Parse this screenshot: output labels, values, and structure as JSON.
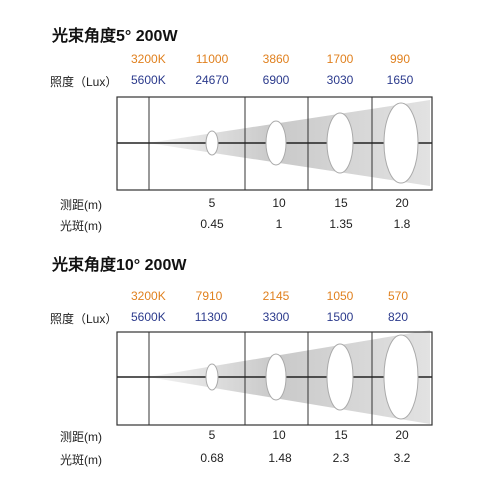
{
  "panels": [
    {
      "title": "光束角度5°  200W",
      "lux_label": "照度（Lux）",
      "distance_label": "测距(m)",
      "spot_label": "光斑(m)",
      "row_3200": {
        "name": "3200K",
        "values": [
          "11000",
          "3860",
          "1700",
          "990"
        ]
      },
      "row_5600": {
        "name": "5600K",
        "values": [
          "24670",
          "6900",
          "3030",
          "1650"
        ]
      },
      "distances": [
        "5",
        "10",
        "15",
        "20"
      ],
      "spots": [
        "0.45",
        "1",
        "1.35",
        "1.8"
      ]
    },
    {
      "title": "光束角度10°  200W",
      "lux_label": "照度（Lux）",
      "distance_label": "测距(m)",
      "spot_label": "光斑(m)",
      "row_3200": {
        "name": "3200K",
        "values": [
          "7910",
          "2145",
          "1050",
          "570"
        ]
      },
      "row_5600": {
        "name": "5600K",
        "values": [
          "11300",
          "3300",
          "1500",
          "820"
        ]
      },
      "distances": [
        "5",
        "10",
        "15",
        "20"
      ],
      "spots": [
        "0.68",
        "1.48",
        "2.3",
        "3.2"
      ]
    }
  ],
  "colors": {
    "warm": "#e0801e",
    "cool": "#2b3a8c",
    "frame": "#333333"
  }
}
